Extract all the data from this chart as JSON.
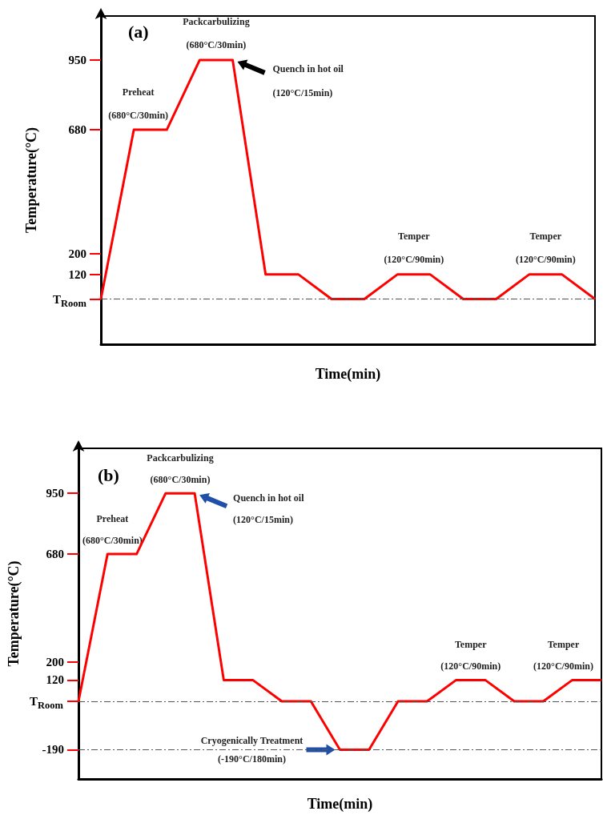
{
  "chart_data": [
    {
      "type": "line",
      "xlabel": "Time(min)",
      "ylabel": "Temperature(°C)",
      "categories": [
        null,
        null,
        null,
        null,
        null,
        null,
        null,
        null,
        null,
        null,
        null,
        null,
        null,
        null,
        null,
        null
      ],
      "ylim": [
        -150,
        1120
      ],
      "yticks": [
        {
          "value": 25,
          "label": "T$_{Room}$"
        },
        120,
        200,
        680,
        950
      ],
      "tick_labels": "y",
      "grid": false,
      "marker": "none",
      "line_style": "solid",
      "series": [
        {
          "color": "#ff0000",
          "values": [
            25,
            680,
            680,
            950,
            950,
            120,
            120,
            25,
            25,
            120,
            120,
            25,
            25,
            120,
            120,
            25
          ]
        }
      ],
      "ref_lines": [
        {
          "axis": "y",
          "value": 25,
          "color": "#555555",
          "line_style": "dashed"
        }
      ],
      "annotations": [
        "(a)",
        "Preheat\n(680°C/30min)",
        "Packcarbulizing\n(680°C/30min)",
        "Quench in hot oil\n(120°C/15min)",
        "Temper\n(120°C/90min)",
        "Temper\n(120°C/90min)"
      ]
    },
    {
      "type": "line",
      "xlabel": "Time(min)",
      "ylabel": "Temperature(°C)",
      "categories": [
        null,
        null,
        null,
        null,
        null,
        null,
        null,
        null,
        null,
        null,
        null,
        null,
        null,
        null,
        null,
        null,
        null,
        null,
        null
      ],
      "ylim": [
        -320,
        1150
      ],
      "yticks": [
        -190,
        {
          "value": 25,
          "label": "T$_{Room}$"
        },
        120,
        200,
        680,
        950
      ],
      "tick_labels": "y",
      "grid": false,
      "marker": "none",
      "line_style": "solid",
      "series": [
        {
          "color": "#ff0000",
          "values": [
            25,
            680,
            680,
            950,
            950,
            120,
            120,
            25,
            25,
            -190,
            -190,
            25,
            25,
            120,
            120,
            25,
            25,
            120,
            120
          ]
        }
      ],
      "ref_lines": [
        {
          "axis": "y",
          "value": 25,
          "color": "#555555",
          "line_style": "dashed"
        },
        {
          "axis": "y",
          "value": -190,
          "color": "#555555",
          "line_style": "dashed"
        }
      ],
      "annotations": [
        "(b)",
        "Preheat\n(680°C/30min)",
        "Packcarbulizing\n(680°C/30min)",
        "Quench in hot oil\n(120°C/15min)",
        "Cryogenically Treatment\n(-190°C/180min)",
        "Temper\n(120°C/90min)",
        "Temper\n(120°C/90min)"
      ]
    }
  ]
}
